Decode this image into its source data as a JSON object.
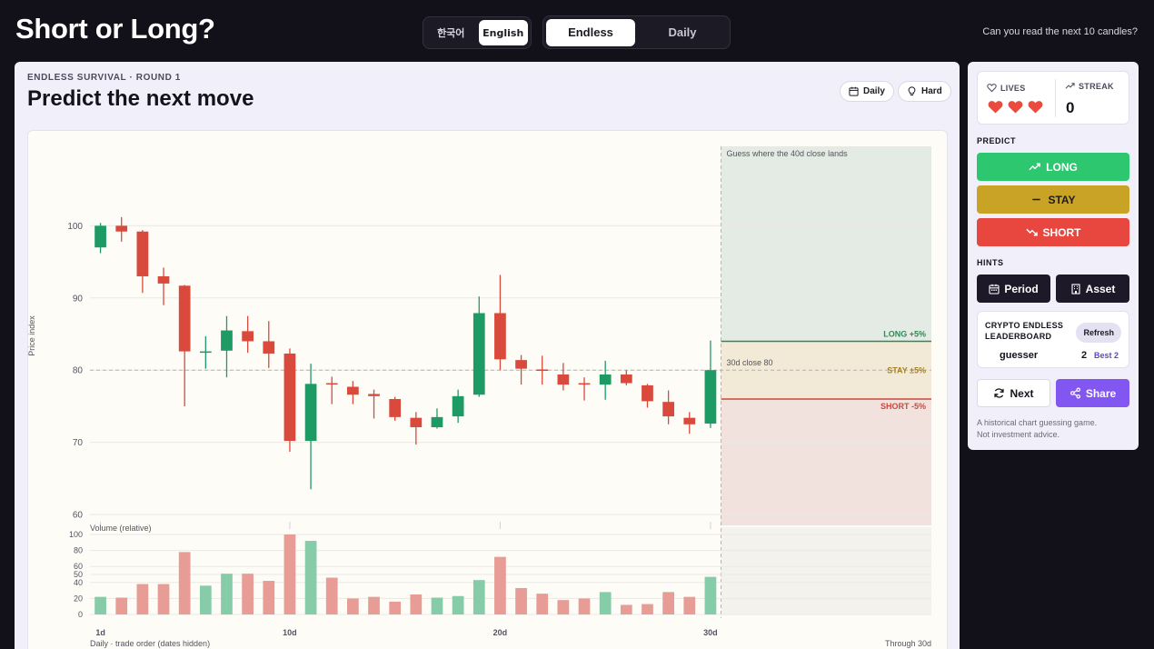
{
  "header": {
    "app_title": "Short or Long?",
    "languages": [
      "한국어",
      "English"
    ],
    "active_language": "English",
    "modes": [
      "Endless",
      "Daily"
    ],
    "active_mode": "Endless",
    "tagline": "Can you read the next 10 candles?"
  },
  "round": {
    "kicker": "ENDLESS SURVIVAL · ROUND 1",
    "headline": "Predict the next move",
    "chips": [
      {
        "label": "Daily",
        "icon": "calendar-icon"
      },
      {
        "label": "Hard",
        "icon": "lightbulb-icon"
      }
    ]
  },
  "sidebar": {
    "lives_label": "LIVES",
    "lives": 3,
    "streak_label": "STREAK",
    "streak": "0",
    "predict_label": "PREDICT",
    "long_label": "LONG",
    "stay_label": "STAY",
    "short_label": "SHORT",
    "hints_label": "HINTS",
    "hint_period": "Period",
    "hint_asset": "Asset",
    "leaderboard_title": "CRYPTO ENDLESS LEADERBOARD",
    "refresh_label": "Refresh",
    "player_name": "guesser",
    "player_score": "2",
    "player_best": "Best 2",
    "next_label": "Next",
    "share_label": "Share",
    "footnote_1": "A historical chart guessing game.",
    "footnote_2": "Not investment advice."
  },
  "colors": {
    "up": "#1e9a64",
    "down": "#d94a3c",
    "long": "#2dc770",
    "stay": "#c9a325",
    "short": "#e8473f",
    "accent": "#8256f0"
  },
  "chart_data": {
    "type": "candlestick",
    "ylabel": "Price index",
    "yticks": [
      60,
      70,
      80,
      90,
      100
    ],
    "ylim": [
      58.5,
      111
    ],
    "xlim": [
      0.5,
      40.5
    ],
    "x_ticks": [
      {
        "x": 1,
        "label": "1d"
      },
      {
        "x": 10,
        "label": "10d"
      },
      {
        "x": 20,
        "label": "20d"
      },
      {
        "x": 30,
        "label": "30d"
      }
    ],
    "footer_left": "Daily · trade order (dates hidden)",
    "footer_right": "Through 30d",
    "prediction_zone_label": "Guess where the 40d close lands",
    "baseline": {
      "value": 80,
      "label": "30d close 80"
    },
    "zones": [
      {
        "name": "long",
        "label": "LONG +5%",
        "value": 84
      },
      {
        "name": "stay",
        "label": "STAY ±5%",
        "value": 80
      },
      {
        "name": "short",
        "label": "SHORT -5%",
        "value": 76
      }
    ],
    "candles": [
      {
        "day": 1,
        "open": 97,
        "close": 100,
        "high": 100.4,
        "low": 96.2
      },
      {
        "day": 2,
        "open": 100,
        "close": 99.2,
        "high": 101.2,
        "low": 97.8
      },
      {
        "day": 3,
        "open": 99.2,
        "close": 93,
        "high": 99.4,
        "low": 90.7
      },
      {
        "day": 4,
        "open": 93,
        "close": 92,
        "high": 94.2,
        "low": 89
      },
      {
        "day": 5,
        "open": 91.7,
        "close": 82.6,
        "high": 91.8,
        "low": 75
      },
      {
        "day": 6,
        "open": 82.5,
        "close": 82.6,
        "high": 84.7,
        "low": 80.2
      },
      {
        "day": 7,
        "open": 82.7,
        "close": 85.5,
        "high": 87.5,
        "low": 79
      },
      {
        "day": 8,
        "open": 85.4,
        "close": 84,
        "high": 87.5,
        "low": 82.4
      },
      {
        "day": 9,
        "open": 84,
        "close": 82.3,
        "high": 86.8,
        "low": 80.3
      },
      {
        "day": 10,
        "open": 82.3,
        "close": 70.2,
        "high": 83,
        "low": 68.7
      },
      {
        "day": 11,
        "open": 70.2,
        "close": 78.1,
        "high": 80.9,
        "low": 63.5
      },
      {
        "day": 12,
        "open": 78.2,
        "close": 78.1,
        "high": 79.1,
        "low": 75.3
      },
      {
        "day": 13,
        "open": 77.7,
        "close": 76.6,
        "high": 78.5,
        "low": 75.3
      },
      {
        "day": 14,
        "open": 76.7,
        "close": 76.4,
        "high": 77.3,
        "low": 73.3
      },
      {
        "day": 15,
        "open": 76,
        "close": 73.5,
        "high": 76.3,
        "low": 73
      },
      {
        "day": 16,
        "open": 73.4,
        "close": 72.1,
        "high": 74.2,
        "low": 69.7
      },
      {
        "day": 17,
        "open": 72.1,
        "close": 73.5,
        "high": 74.7,
        "low": 71.9
      },
      {
        "day": 18,
        "open": 73.6,
        "close": 76.4,
        "high": 77.3,
        "low": 72.7
      },
      {
        "day": 19,
        "open": 76.6,
        "close": 87.9,
        "high": 90.2,
        "low": 76.3
      },
      {
        "day": 20,
        "open": 87.9,
        "close": 81.5,
        "high": 93.2,
        "low": 80
      },
      {
        "day": 21,
        "open": 81.4,
        "close": 80.2,
        "high": 82.1,
        "low": 78
      },
      {
        "day": 22,
        "open": 80.1,
        "close": 79.9,
        "high": 82,
        "low": 78
      },
      {
        "day": 23,
        "open": 79.4,
        "close": 78,
        "high": 81,
        "low": 77.2
      },
      {
        "day": 24,
        "open": 78.2,
        "close": 78,
        "high": 79,
        "low": 75.8
      },
      {
        "day": 25,
        "open": 78,
        "close": 79.4,
        "high": 81.3,
        "low": 75.9
      },
      {
        "day": 26,
        "open": 79.4,
        "close": 78.2,
        "high": 80,
        "low": 77.9
      },
      {
        "day": 27,
        "open": 77.9,
        "close": 75.7,
        "high": 78.1,
        "low": 74.8
      },
      {
        "day": 28,
        "open": 75.6,
        "close": 73.6,
        "high": 77.2,
        "low": 72.5
      },
      {
        "day": 29,
        "open": 73.4,
        "close": 72.5,
        "high": 74.2,
        "low": 71.2
      },
      {
        "day": 30,
        "open": 72.6,
        "close": 80,
        "high": 84.1,
        "low": 72
      }
    ],
    "volume": {
      "label": "Volume (relative)",
      "yticks": [
        0,
        20,
        40,
        50,
        60,
        80,
        100
      ],
      "ylim": [
        0,
        100
      ],
      "values": [
        22,
        21,
        38,
        38,
        78,
        36,
        51,
        51,
        42,
        100,
        92,
        46,
        20,
        22,
        16,
        25,
        21,
        23,
        43,
        72,
        33,
        26,
        18,
        20,
        28,
        12,
        13,
        28,
        22,
        47
      ]
    }
  }
}
